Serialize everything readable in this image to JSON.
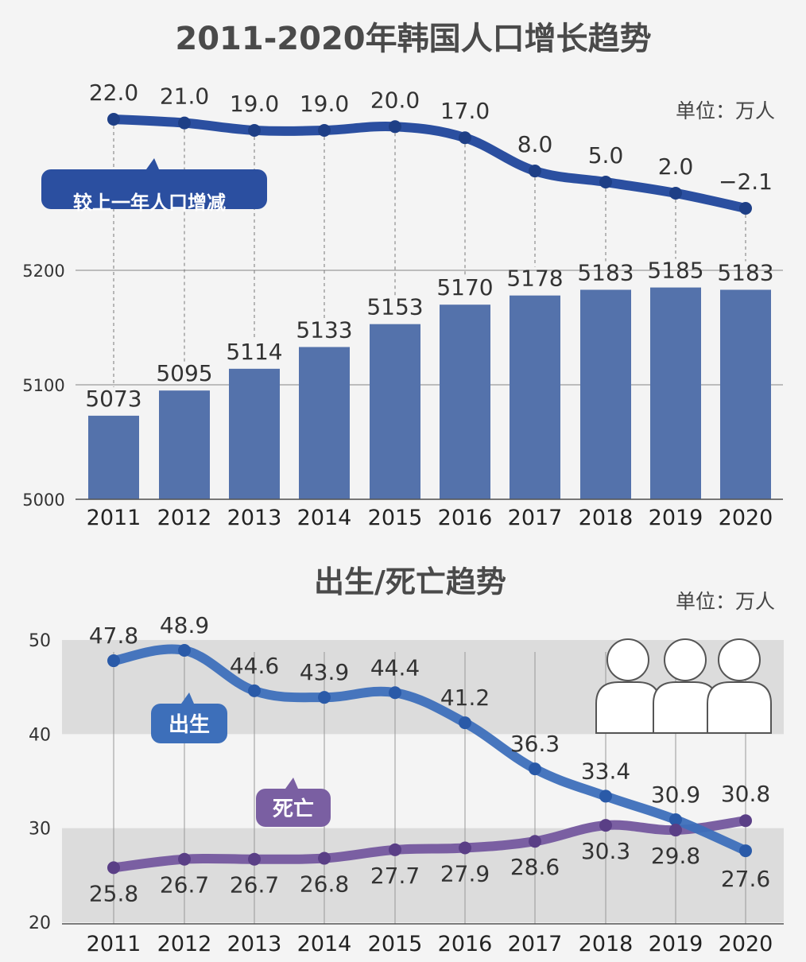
{
  "chart_data": [
    {
      "type": "line",
      "title": "2011-2020年韩国人口增长趋势",
      "unit": "单位：万人",
      "series": [
        {
          "name": "较上一年人口增减",
          "values": [
            22.0,
            21.0,
            19.0,
            19.0,
            20.0,
            17.0,
            8.0,
            5.0,
            2.0,
            -2.1
          ],
          "labels": [
            "22.0",
            "21.0",
            "19.0",
            "19.0",
            "20.0",
            "17.0",
            "8.0",
            "5.0",
            "2.0",
            "−2.1"
          ],
          "color": "#2b4fa0"
        }
      ],
      "x": [
        "2011",
        "2012",
        "2013",
        "2014",
        "2015",
        "2016",
        "2017",
        "2018",
        "2019",
        "2020"
      ]
    },
    {
      "type": "bar",
      "categories": [
        "2011",
        "2012",
        "2013",
        "2014",
        "2015",
        "2016",
        "2017",
        "2018",
        "2019",
        "2020"
      ],
      "values": [
        5073,
        5095,
        5114,
        5133,
        5153,
        5170,
        5178,
        5183,
        5185,
        5183
      ],
      "ylim": [
        5000,
        5200
      ],
      "yticks": [
        "5000",
        "5100",
        "5200"
      ],
      "grid": true,
      "color": "#5472ab"
    },
    {
      "type": "line",
      "title": "出生/死亡趋势",
      "unit": "单位：万人",
      "x": [
        "2011",
        "2012",
        "2013",
        "2014",
        "2015",
        "2016",
        "2017",
        "2018",
        "2019",
        "2020"
      ],
      "ylim": [
        20,
        50
      ],
      "yticks": [
        "20",
        "30",
        "40",
        "50"
      ],
      "series": [
        {
          "name": "出生",
          "values": [
            47.8,
            48.9,
            44.6,
            43.9,
            44.4,
            41.2,
            36.3,
            33.4,
            30.9,
            27.6
          ],
          "labels": [
            "47.8",
            "48.9",
            "44.6",
            "43.9",
            "44.4",
            "41.2",
            "36.3",
            "33.4",
            "30.9",
            "27.6"
          ],
          "color": "#3d6fba"
        },
        {
          "name": "死亡",
          "values": [
            25.8,
            26.7,
            26.7,
            26.8,
            27.7,
            27.9,
            28.6,
            30.3,
            29.8,
            30.8
          ],
          "labels": [
            "25.8",
            "26.7",
            "26.7",
            "26.8",
            "27.7",
            "27.9",
            "28.6",
            "30.3",
            "29.8",
            "30.8"
          ],
          "color": "#7a5fa2"
        }
      ]
    }
  ]
}
